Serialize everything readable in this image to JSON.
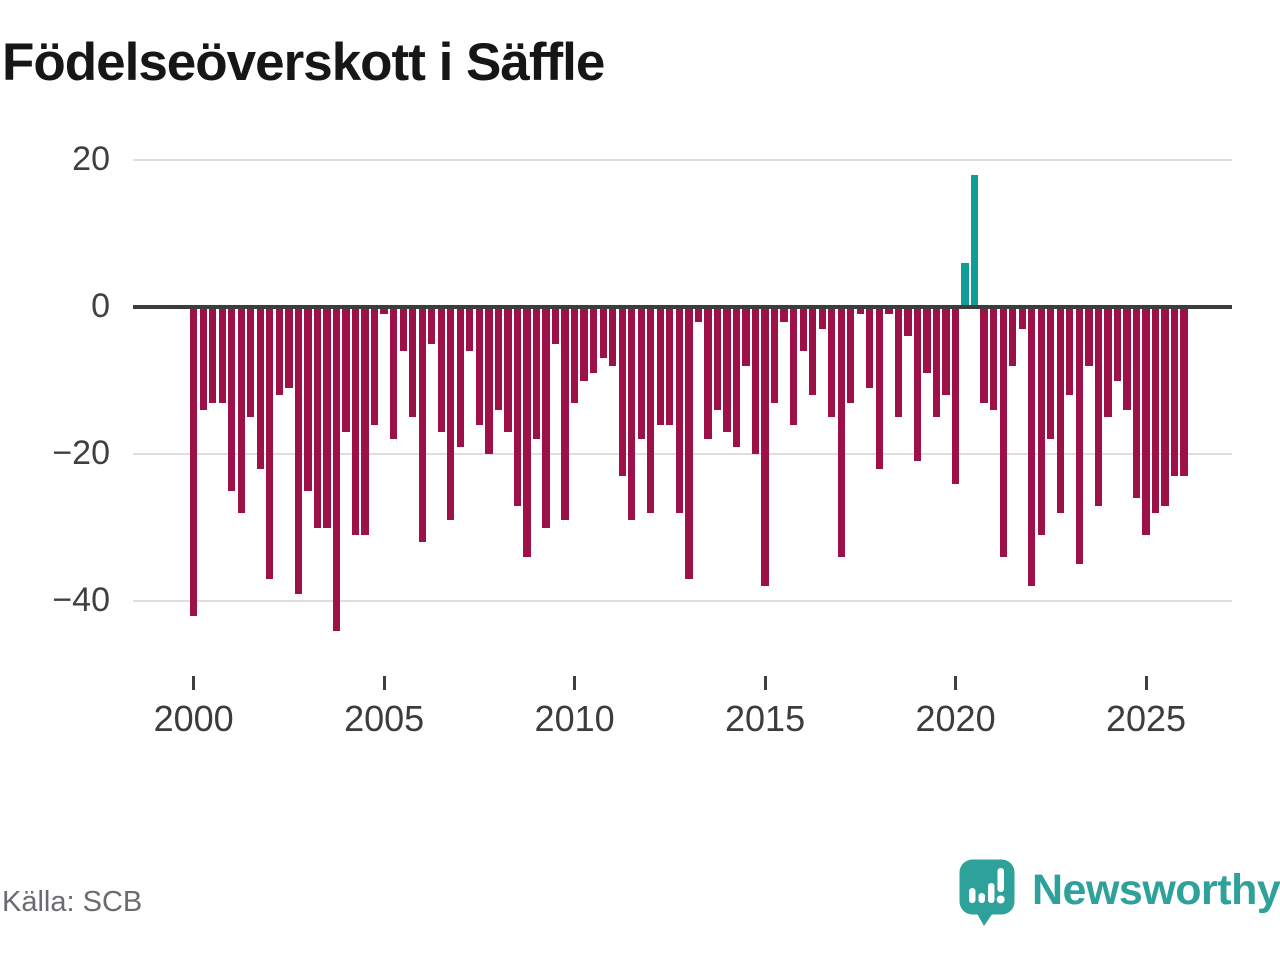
{
  "title": "Födelseöverskott i Säffle",
  "source": "Källa: SCB",
  "branding": {
    "wordmark": "Newsworthy",
    "icon": "newsworthy-speech-bubble-chart-icon"
  },
  "colors": {
    "bar_negative": "#9E1048",
    "bar_positive": "#0F9E96",
    "zero_line": "#3C3C3C",
    "gridline": "#DEDEDE",
    "title_text": "#161616",
    "axis_text": "#3F3F3F",
    "source_text": "#6B6B70",
    "brand_teal": "#2DA19A"
  },
  "chart_data": {
    "type": "bar",
    "title": "Födelseöverskott i Säffle",
    "frequency": "quarterly",
    "start_period": "2000-Q1",
    "end_period": "2026-Q1",
    "values": [
      -42,
      -14,
      -13,
      -13,
      -25,
      -28,
      -15,
      -22,
      -37,
      -12,
      -11,
      -39,
      -25,
      -30,
      -30,
      -44,
      -17,
      -31,
      -31,
      -16,
      -1,
      -18,
      -6,
      -15,
      -32,
      -5,
      -17,
      -29,
      -19,
      -6,
      -16,
      -20,
      -14,
      -17,
      -27,
      -34,
      -18,
      -30,
      -5,
      -29,
      -13,
      -10,
      -9,
      -7,
      -8,
      -23,
      -29,
      -18,
      -28,
      -16,
      -16,
      -28,
      -37,
      -2,
      -18,
      -14,
      -17,
      -19,
      -8,
      -20,
      -38,
      -13,
      -2,
      -16,
      -6,
      -12,
      -3,
      -15,
      -34,
      -13,
      -1,
      -11,
      -22,
      -1,
      -15,
      -4,
      -21,
      -9,
      -15,
      -12,
      -24,
      6,
      18,
      -13,
      -14,
      -34,
      -8,
      -3,
      -38,
      -31,
      -18,
      -28,
      -12,
      -35,
      -8,
      -27,
      -15,
      -10,
      -14,
      -26,
      -31,
      -28,
      -27,
      -23,
      -23
    ],
    "x_ticks": {
      "years": [
        2000,
        2005,
        2010,
        2015,
        2020,
        2025
      ],
      "labels": [
        "2000",
        "2005",
        "2010",
        "2015",
        "2020",
        "2025"
      ]
    },
    "y_ticks": {
      "values": [
        20,
        0,
        -20,
        -40
      ],
      "labels": [
        "20",
        "0",
        "−20",
        "−40"
      ]
    },
    "ylim": [
      -47,
      22
    ],
    "grid": "horizontal-only",
    "legend": "none"
  }
}
